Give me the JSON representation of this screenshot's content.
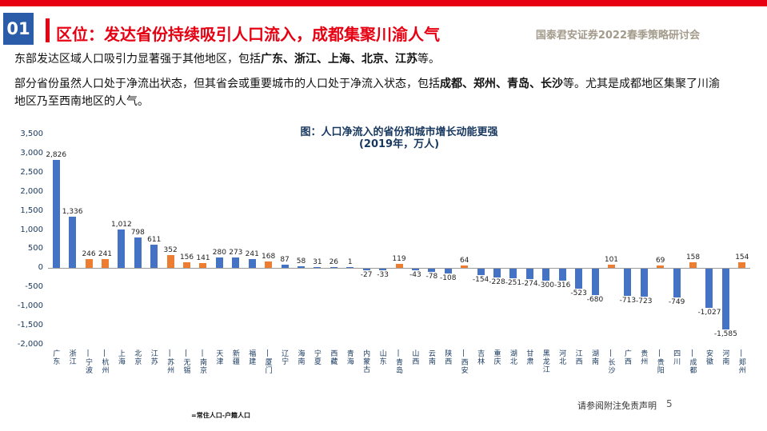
{
  "header": {
    "slide_number": "01",
    "title": "区位：发达省份持续吸引人口流入，成都集聚川渝人气",
    "conference": "国泰君安证券2022春季策略研讨会"
  },
  "body": {
    "paragraphs": [
      {
        "segments": [
          {
            "text": "东部发达区域人口吸引力显著强于其他地区，包括",
            "bold": false
          },
          {
            "text": "广东、浙江、上海、北京、江苏",
            "bold": true
          },
          {
            "text": "等。",
            "bold": false
          }
        ]
      },
      {
        "segments": [
          {
            "text": "部分省份虽然人口处于净流出状态，但其省会或重要城市的人口处于净流入状态，包括",
            "bold": false
          },
          {
            "text": "成都、郑州、青岛、长沙",
            "bold": true
          },
          {
            "text": "等。尤其是成都地区集聚了川渝地区乃至西南地区的人气。",
            "bold": false
          }
        ]
      }
    ]
  },
  "chart_data": {
    "type": "bar",
    "title": "图：人口净流入的省份和城市增长动能更强",
    "subtitle": "(2019年，万人)",
    "ylim": [
      -2000,
      3500
    ],
    "ytick_step": 500,
    "grid": false,
    "legend": "none",
    "colors": {
      "province": "#4472C4",
      "city": "#ED7D31"
    },
    "bars": [
      {
        "label": "广东",
        "value": 2826,
        "kind": "province"
      },
      {
        "label": "浙江",
        "value": 1336,
        "kind": "province"
      },
      {
        "label": "宁波",
        "value": 246,
        "kind": "city"
      },
      {
        "label": "杭州",
        "value": 241,
        "kind": "city"
      },
      {
        "label": "上海",
        "value": 1012,
        "kind": "province"
      },
      {
        "label": "北京",
        "value": 798,
        "kind": "province"
      },
      {
        "label": "江苏",
        "value": 611,
        "kind": "province"
      },
      {
        "label": "苏州",
        "value": 352,
        "kind": "city"
      },
      {
        "label": "无锡",
        "value": 156,
        "kind": "city"
      },
      {
        "label": "南京",
        "value": 141,
        "kind": "city"
      },
      {
        "label": "天津",
        "value": 280,
        "kind": "province"
      },
      {
        "label": "新疆",
        "value": 273,
        "kind": "province"
      },
      {
        "label": "福建",
        "value": 241,
        "kind": "province"
      },
      {
        "label": "厦门",
        "value": 168,
        "kind": "city"
      },
      {
        "label": "辽宁",
        "value": 87,
        "kind": "province"
      },
      {
        "label": "海南",
        "value": 58,
        "kind": "province"
      },
      {
        "label": "宁夏",
        "value": 31,
        "kind": "province"
      },
      {
        "label": "西藏",
        "value": 26,
        "kind": "province"
      },
      {
        "label": "青海",
        "value": 1,
        "kind": "province"
      },
      {
        "label": "内蒙古",
        "value": -27,
        "kind": "province"
      },
      {
        "label": "山东",
        "value": -33,
        "kind": "province"
      },
      {
        "label": "青岛",
        "value": 119,
        "kind": "city"
      },
      {
        "label": "山西",
        "value": -43,
        "kind": "province"
      },
      {
        "label": "云南",
        "value": -78,
        "kind": "province"
      },
      {
        "label": "陕西",
        "value": -108,
        "kind": "province"
      },
      {
        "label": "西安",
        "value": 64,
        "kind": "city"
      },
      {
        "label": "吉林",
        "value": -154,
        "kind": "province"
      },
      {
        "label": "重庆",
        "value": -228,
        "kind": "province"
      },
      {
        "label": "湖北",
        "value": -251,
        "kind": "province"
      },
      {
        "label": "甘肃",
        "value": -274,
        "kind": "province"
      },
      {
        "label": "黑龙江",
        "value": -300,
        "kind": "province"
      },
      {
        "label": "河北",
        "value": -316,
        "kind": "province"
      },
      {
        "label": "江西",
        "value": -523,
        "kind": "province"
      },
      {
        "label": "湖南",
        "value": -680,
        "kind": "province"
      },
      {
        "label": "长沙",
        "value": 101,
        "kind": "city"
      },
      {
        "label": "广西",
        "value": -713,
        "kind": "province"
      },
      {
        "label": "贵州",
        "value": -723,
        "kind": "province"
      },
      {
        "label": "贵阳",
        "value": 69,
        "kind": "city"
      },
      {
        "label": "四川",
        "value": -749,
        "kind": "province"
      },
      {
        "label": "成都",
        "value": 158,
        "kind": "city"
      },
      {
        "label": "安徽",
        "value": -1027,
        "kind": "province"
      },
      {
        "label": "河南",
        "value": -1585,
        "kind": "province"
      },
      {
        "label": "郑州",
        "value": 154,
        "kind": "city"
      }
    ]
  },
  "footer": {
    "disclaimer": "请参阅附注免责声明",
    "page_number": "5",
    "note": "=常住人口-户籍人口"
  },
  "colors": {
    "accent_red": "#E60012",
    "badge_blue": "#2A5CAA",
    "header_tan": "#A39B8B",
    "chart_text_navy": "#17375E"
  }
}
